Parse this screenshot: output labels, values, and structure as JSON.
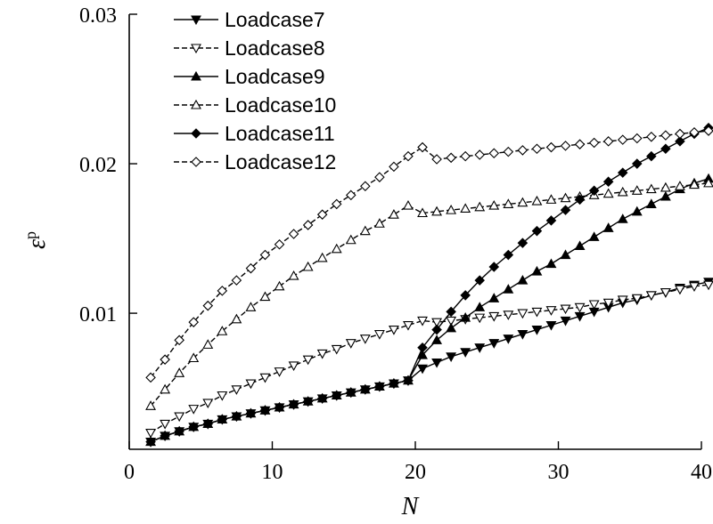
{
  "chart_data": {
    "type": "line",
    "title": "",
    "xlabel": "N",
    "ylabel_base": "ε",
    "ylabel_sup": "p",
    "xlim": [
      0,
      40
    ],
    "ylim": [
      0,
      0.03
    ],
    "y_axis_start": 0.0009,
    "xticks": [
      0,
      10,
      20,
      30,
      40
    ],
    "xtick_labels": [
      "0",
      "10",
      "20",
      "30",
      "40"
    ],
    "yticks": [
      0.01,
      0.02,
      0.03
    ],
    "ytick_labels": [
      "0.01",
      "0.02",
      "0.03"
    ],
    "grid": false,
    "legend_position": "top-left",
    "x": [
      1.5,
      2.5,
      3.5,
      4.5,
      5.5,
      6.5,
      7.5,
      8.5,
      9.5,
      10.5,
      11.5,
      12.5,
      13.5,
      14.5,
      15.5,
      16.5,
      17.5,
      18.5,
      19.5,
      20.5,
      21.5,
      22.5,
      23.5,
      24.5,
      25.5,
      26.5,
      27.5,
      28.5,
      29.5,
      30.5,
      31.5,
      32.5,
      33.5,
      34.5,
      35.5,
      36.5,
      37.5,
      38.5,
      39.5,
      40.5
    ],
    "series": [
      {
        "name": "Loadcase7",
        "marker": "tri-down",
        "filled": true,
        "dashed": false,
        "values": [
          0.0014,
          0.0018,
          0.0021,
          0.0024,
          0.0026,
          0.0029,
          0.0031,
          0.0033,
          0.0035,
          0.0037,
          0.0039,
          0.0041,
          0.0043,
          0.0045,
          0.0047,
          0.0049,
          0.0051,
          0.0053,
          0.0055,
          0.0063,
          0.0067,
          0.0071,
          0.0074,
          0.0077,
          0.008,
          0.0083,
          0.0086,
          0.0089,
          0.0092,
          0.0095,
          0.0098,
          0.0101,
          0.0104,
          0.0107,
          0.0109,
          0.0112,
          0.0114,
          0.0117,
          0.0119,
          0.0121
        ]
      },
      {
        "name": "Loadcase8",
        "marker": "tri-down",
        "filled": false,
        "dashed": true,
        "values": [
          0.002,
          0.0026,
          0.0031,
          0.0036,
          0.004,
          0.0045,
          0.0049,
          0.0053,
          0.0057,
          0.0061,
          0.0065,
          0.0069,
          0.0073,
          0.0076,
          0.008,
          0.0083,
          0.0086,
          0.0089,
          0.0092,
          0.0095,
          0.0094,
          0.0095,
          0.0096,
          0.0097,
          0.0098,
          0.0099,
          0.01,
          0.0101,
          0.0102,
          0.0103,
          0.0104,
          0.0106,
          0.0107,
          0.0109,
          0.011,
          0.0112,
          0.0114,
          0.0116,
          0.0118,
          0.0119
        ]
      },
      {
        "name": "Loadcase9",
        "marker": "tri-up",
        "filled": true,
        "dashed": false,
        "values": [
          0.0014,
          0.0018,
          0.0021,
          0.0024,
          0.0026,
          0.0029,
          0.0031,
          0.0033,
          0.0035,
          0.0037,
          0.0039,
          0.0041,
          0.0043,
          0.0045,
          0.0047,
          0.0049,
          0.0051,
          0.0053,
          0.0055,
          0.0072,
          0.0082,
          0.009,
          0.0097,
          0.0104,
          0.011,
          0.0116,
          0.0122,
          0.0128,
          0.0133,
          0.0139,
          0.0145,
          0.0151,
          0.0157,
          0.0163,
          0.0168,
          0.0173,
          0.0178,
          0.0183,
          0.0187,
          0.019
        ]
      },
      {
        "name": "Loadcase10",
        "marker": "tri-up",
        "filled": false,
        "dashed": true,
        "values": [
          0.0038,
          0.0049,
          0.006,
          0.007,
          0.0079,
          0.0088,
          0.0096,
          0.0104,
          0.0111,
          0.0118,
          0.0125,
          0.0131,
          0.0137,
          0.0143,
          0.0149,
          0.0155,
          0.016,
          0.0166,
          0.0172,
          0.0167,
          0.0168,
          0.0169,
          0.017,
          0.0171,
          0.0172,
          0.0173,
          0.0174,
          0.0175,
          0.0176,
          0.0177,
          0.0178,
          0.0179,
          0.018,
          0.0181,
          0.0182,
          0.0183,
          0.0184,
          0.0185,
          0.0186,
          0.0187
        ]
      },
      {
        "name": "Loadcase11",
        "marker": "diamond",
        "filled": true,
        "dashed": false,
        "values": [
          0.0014,
          0.0018,
          0.0021,
          0.0024,
          0.0026,
          0.0029,
          0.0031,
          0.0033,
          0.0035,
          0.0037,
          0.0039,
          0.0041,
          0.0043,
          0.0045,
          0.0047,
          0.0049,
          0.0051,
          0.0053,
          0.0055,
          0.0077,
          0.0089,
          0.0101,
          0.0112,
          0.0122,
          0.0131,
          0.0139,
          0.0147,
          0.0155,
          0.0162,
          0.0169,
          0.0176,
          0.0182,
          0.0188,
          0.0194,
          0.02,
          0.0205,
          0.021,
          0.0215,
          0.022,
          0.0224
        ]
      },
      {
        "name": "Loadcase12",
        "marker": "diamond",
        "filled": false,
        "dashed": true,
        "values": [
          0.0057,
          0.0069,
          0.0082,
          0.0094,
          0.0105,
          0.0115,
          0.0122,
          0.013,
          0.0139,
          0.0146,
          0.0153,
          0.0159,
          0.0166,
          0.0173,
          0.0179,
          0.0185,
          0.0191,
          0.0198,
          0.0205,
          0.0211,
          0.0203,
          0.0204,
          0.0205,
          0.0206,
          0.0207,
          0.0208,
          0.0209,
          0.021,
          0.0211,
          0.0212,
          0.0213,
          0.0214,
          0.0215,
          0.0216,
          0.0217,
          0.0218,
          0.0219,
          0.022,
          0.0221,
          0.0222
        ]
      }
    ]
  }
}
